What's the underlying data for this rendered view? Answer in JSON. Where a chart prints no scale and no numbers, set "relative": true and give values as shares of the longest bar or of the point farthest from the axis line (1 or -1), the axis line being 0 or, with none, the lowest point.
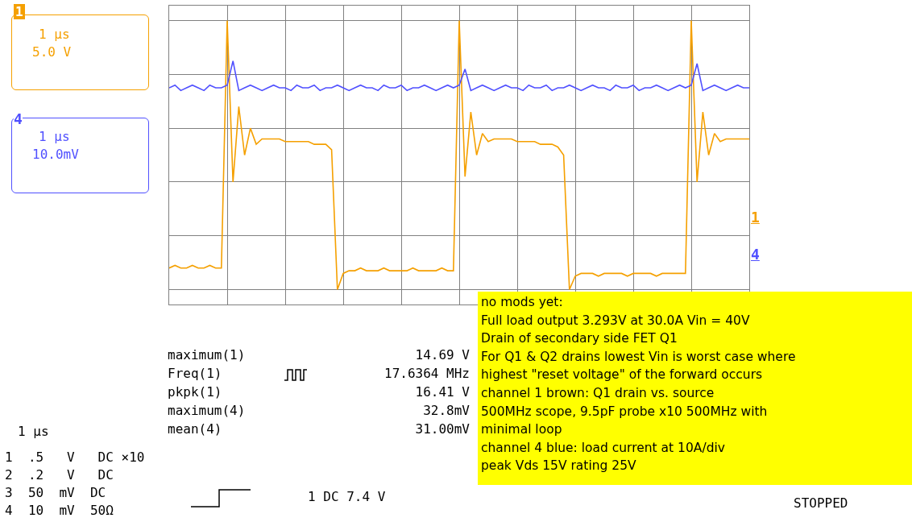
{
  "chart_data": {
    "type": "line",
    "relative": true,
    "grid": true,
    "legend": false,
    "marker": "none",
    "line_style": "solid",
    "categories": [
      null,
      null,
      null,
      null,
      null,
      null,
      null,
      null,
      null,
      null,
      null,
      null,
      null,
      null,
      null,
      null,
      null,
      null,
      null,
      null,
      null,
      null,
      null,
      null,
      null,
      null,
      null,
      null,
      null,
      null,
      null,
      null,
      null,
      null,
      null,
      null,
      null,
      null,
      null,
      null,
      null,
      null,
      null,
      null,
      null,
      null,
      null,
      null,
      null,
      null,
      null,
      null,
      null,
      null,
      null,
      null,
      null,
      null,
      null,
      null,
      null,
      null,
      null,
      null,
      null,
      null,
      null,
      null,
      null,
      null,
      null,
      null,
      null,
      null,
      null,
      null,
      null,
      null,
      null,
      null,
      null,
      null,
      null,
      null,
      null,
      null,
      null,
      null,
      null,
      null,
      null,
      null,
      null,
      null,
      null,
      null,
      null,
      null,
      null,
      null,
      null
    ],
    "series": [
      {
        "name": "1",
        "color": "#f5a000",
        "values": [
          0.08,
          0.09,
          0.08,
          0.08,
          0.09,
          0.08,
          0.08,
          0.09,
          0.08,
          0.08,
          1.0,
          0.4,
          0.68,
          0.5,
          0.6,
          0.54,
          0.56,
          0.56,
          0.56,
          0.56,
          0.55,
          0.55,
          0.55,
          0.55,
          0.55,
          0.54,
          0.54,
          0.54,
          0.52,
          0.0,
          0.06,
          0.07,
          0.07,
          0.08,
          0.07,
          0.07,
          0.07,
          0.08,
          0.07,
          0.07,
          0.07,
          0.07,
          0.08,
          0.07,
          0.07,
          0.07,
          0.07,
          0.08,
          0.07,
          0.07,
          1.0,
          0.42,
          0.66,
          0.5,
          0.58,
          0.55,
          0.56,
          0.56,
          0.56,
          0.56,
          0.55,
          0.55,
          0.55,
          0.55,
          0.54,
          0.54,
          0.54,
          0.53,
          0.5,
          0.0,
          0.05,
          0.06,
          0.06,
          0.06,
          0.05,
          0.06,
          0.06,
          0.06,
          0.06,
          0.05,
          0.06,
          0.06,
          0.06,
          0.06,
          0.05,
          0.06,
          0.06,
          0.06,
          0.06,
          0.06,
          1.0,
          0.4,
          0.66,
          0.5,
          0.58,
          0.55,
          0.56,
          0.56,
          0.56,
          0.56,
          0.56
        ]
      },
      {
        "name": "4",
        "color": "#5050ff",
        "values": [
          0.75,
          0.76,
          0.74,
          0.75,
          0.76,
          0.75,
          0.74,
          0.76,
          0.75,
          0.75,
          0.76,
          0.85,
          0.74,
          0.75,
          0.76,
          0.75,
          0.74,
          0.75,
          0.76,
          0.75,
          0.75,
          0.74,
          0.76,
          0.75,
          0.75,
          0.76,
          0.74,
          0.75,
          0.75,
          0.76,
          0.75,
          0.74,
          0.75,
          0.76,
          0.75,
          0.75,
          0.74,
          0.76,
          0.75,
          0.75,
          0.76,
          0.74,
          0.75,
          0.75,
          0.76,
          0.75,
          0.74,
          0.75,
          0.76,
          0.75,
          0.76,
          0.82,
          0.74,
          0.75,
          0.76,
          0.75,
          0.74,
          0.75,
          0.76,
          0.75,
          0.75,
          0.74,
          0.76,
          0.75,
          0.75,
          0.76,
          0.74,
          0.75,
          0.75,
          0.76,
          0.75,
          0.74,
          0.75,
          0.76,
          0.75,
          0.75,
          0.74,
          0.76,
          0.75,
          0.75,
          0.76,
          0.74,
          0.75,
          0.75,
          0.76,
          0.75,
          0.74,
          0.75,
          0.76,
          0.75,
          0.76,
          0.84,
          0.74,
          0.75,
          0.76,
          0.75,
          0.74,
          0.75,
          0.76,
          0.75,
          0.75
        ]
      }
    ],
    "annotations": [
      "1 μs",
      "5.0 V",
      "1 μs",
      "10.0mV",
      "maximum(1)",
      "14.69 V",
      "Freq(1)",
      "17.6364 MHz",
      "pkpk(1)",
      "16.41 V",
      "maximum(4)",
      "32.8mV",
      "mean(4)",
      "31.00mV",
      "1 μs",
      "1  .5   V   DC ×10",
      "2  .2   V   DC",
      "3  50  mV  DC",
      "4  10  mV  50Ω",
      "1 DC 7.4 V",
      "STOPPED",
      "no mods yet:\nFull load output 3.293V at 30.0A Vin = 40V\nDrain of secondary side FET Q1\nFor Q1 & Q2 drains lowest Vin is worst case where\nhighest \"reset voltage\" of the forward occurs\nchannel 1 brown: Q1 drain vs. source\n500MHz scope, 9.5pF probe x10 500MHz with\nminimal loop\nchannel 4 blue: load current at 10A/div\npeak Vds 15V rating 25V"
    ]
  }
}
